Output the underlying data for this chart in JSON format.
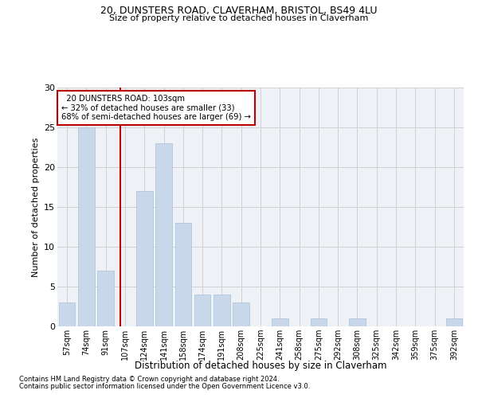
{
  "title1": "20, DUNSTERS ROAD, CLAVERHAM, BRISTOL, BS49 4LU",
  "title2": "Size of property relative to detached houses in Claverham",
  "xlabel": "Distribution of detached houses by size in Claverham",
  "ylabel": "Number of detached properties",
  "categories": [
    "57sqm",
    "74sqm",
    "91sqm",
    "107sqm",
    "124sqm",
    "141sqm",
    "158sqm",
    "174sqm",
    "191sqm",
    "208sqm",
    "225sqm",
    "241sqm",
    "258sqm",
    "275sqm",
    "292sqm",
    "308sqm",
    "325sqm",
    "342sqm",
    "359sqm",
    "375sqm",
    "392sqm"
  ],
  "values": [
    3,
    25,
    7,
    0,
    17,
    23,
    13,
    4,
    4,
    3,
    0,
    1,
    0,
    1,
    0,
    1,
    0,
    0,
    0,
    0,
    1
  ],
  "bar_color": "#c8d8ea",
  "bar_edge_color": "#a8c0d8",
  "grid_color": "#d0d0d0",
  "bg_color": "#eef2f7",
  "vline_x": 2.75,
  "vline_color": "#bb0000",
  "annotation_line1": "  20 DUNSTERS ROAD: 103sqm",
  "annotation_line2": "← 32% of detached houses are smaller (33)",
  "annotation_line3": "68% of semi-detached houses are larger (69) →",
  "annotation_box_color": "#bb0000",
  "footnote1": "Contains HM Land Registry data © Crown copyright and database right 2024.",
  "footnote2": "Contains public sector information licensed under the Open Government Licence v3.0.",
  "ylim": [
    0,
    30
  ],
  "yticks": [
    0,
    5,
    10,
    15,
    20,
    25,
    30
  ]
}
